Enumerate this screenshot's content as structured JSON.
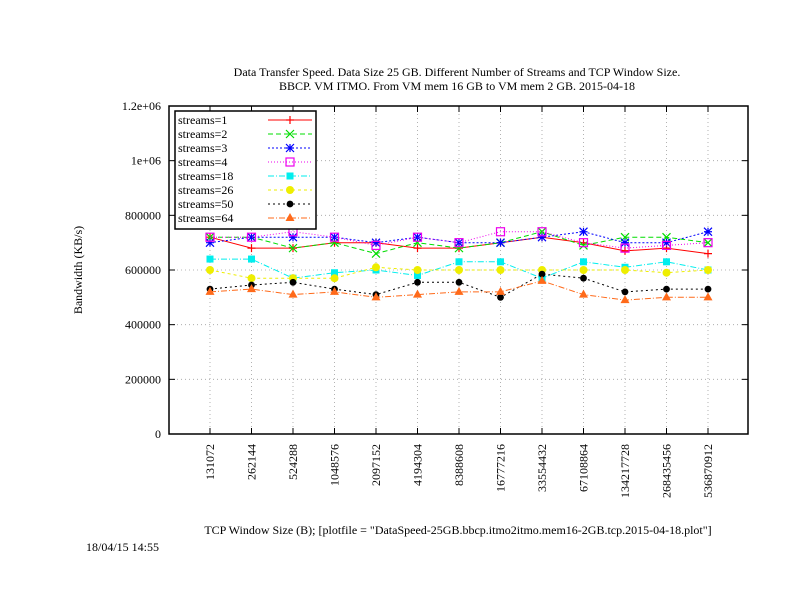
{
  "chart_data": {
    "type": "line",
    "title_line1": "Data Transfer Speed. Data Size 25 GB. Different Number of Streams and TCP Window Size.",
    "title_line2": "BBCP. VM ITMO. From VM mem 16 GB to VM mem 2 GB.  2015-04-18",
    "ylabel": "Bandwidth (KB/s)",
    "xlabel": "TCP Window Size (B); [plotfile = \"DataSpeed-25GB.bbcp.itmo2itmo.mem16-2GB.tcp.2015-04-18.plot\"]",
    "timestamp": "18/04/15 14:55",
    "ylim": [
      0,
      1200000
    ],
    "yticks": [
      {
        "value": 0,
        "label": "0"
      },
      {
        "value": 200000,
        "label": "200000"
      },
      {
        "value": 400000,
        "label": "400000"
      },
      {
        "value": 600000,
        "label": "600000"
      },
      {
        "value": 800000,
        "label": "800000"
      },
      {
        "value": 1000000,
        "label": "1e+06"
      },
      {
        "value": 1200000,
        "label": "1.2e+06"
      }
    ],
    "categories": [
      "131072",
      "262144",
      "524288",
      "1048576",
      "2097152",
      "4194304",
      "8388608",
      "16777216",
      "33554432",
      "67108864",
      "134217728",
      "268435456",
      "536870912"
    ],
    "grid": true,
    "legend_position": "top-left",
    "series": [
      {
        "name": "streams=1",
        "color": "#ff0000",
        "dash": "",
        "marker": "plus",
        "values": [
          720000,
          680000,
          680000,
          700000,
          700000,
          680000,
          680000,
          700000,
          720000,
          700000,
          670000,
          680000,
          660000
        ]
      },
      {
        "name": "streams=2",
        "color": "#00dd00",
        "dash": "5,3",
        "marker": "x",
        "values": [
          720000,
          720000,
          680000,
          700000,
          660000,
          700000,
          680000,
          700000,
          740000,
          690000,
          720000,
          720000,
          700000
        ]
      },
      {
        "name": "streams=3",
        "color": "#0000ff",
        "dash": "2,2",
        "marker": "star",
        "values": [
          700000,
          720000,
          720000,
          720000,
          700000,
          720000,
          700000,
          700000,
          720000,
          740000,
          700000,
          700000,
          740000
        ]
      },
      {
        "name": "streams=4",
        "color": "#ee00ee",
        "dash": "1,2",
        "marker": "square",
        "values": [
          720000,
          720000,
          740000,
          720000,
          690000,
          720000,
          700000,
          740000,
          740000,
          700000,
          680000,
          690000,
          700000
        ]
      },
      {
        "name": "streams=18",
        "color": "#00eeee",
        "dash": "6,2,1,2",
        "marker": "squarefill",
        "values": [
          640000,
          640000,
          570000,
          590000,
          600000,
          580000,
          630000,
          630000,
          570000,
          630000,
          610000,
          630000,
          600000
        ]
      },
      {
        "name": "streams=26",
        "color": "#eeee00",
        "dash": "3,3",
        "marker": "circle",
        "values": [
          600000,
          570000,
          570000,
          570000,
          610000,
          600000,
          600000,
          600000,
          600000,
          600000,
          600000,
          590000,
          600000
        ]
      },
      {
        "name": "streams=50",
        "color": "#000000",
        "dash": "2,3",
        "marker": "dot",
        "values": [
          530000,
          545000,
          555000,
          530000,
          510000,
          555000,
          555000,
          500000,
          585000,
          570000,
          520000,
          530000,
          530000
        ]
      },
      {
        "name": "streams=64",
        "color": "#ff6a1a",
        "dash": "6,2,1,2",
        "marker": "triangle",
        "values": [
          520000,
          530000,
          510000,
          520000,
          500000,
          510000,
          520000,
          520000,
          560000,
          510000,
          490000,
          500000,
          500000
        ]
      }
    ]
  }
}
